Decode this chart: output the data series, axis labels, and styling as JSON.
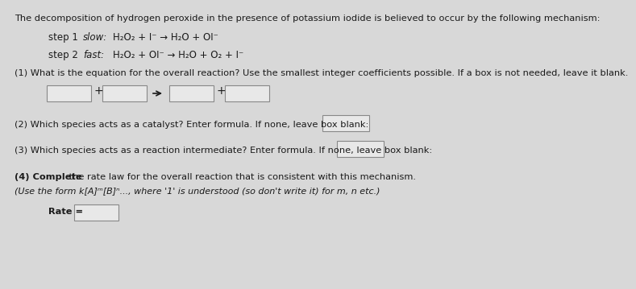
{
  "title_text": "The decomposition of hydrogen peroxide in the presence of potassium iodide is believed to occur by the following mechanism:",
  "step1_label": "step 1",
  "step1_speed": "slow:",
  "step1_eq": "H₂O₂ + I⁻ → H₂O + OI⁻",
  "step2_label": "step 2",
  "step2_speed": "fast:",
  "step2_eq": "H₂O₂ + OI⁻ → H₂O + O₂ + I⁻",
  "q1_text": "(1) What is the equation for the overall reaction? Use the smallest integer coefficients possible. If a box is not needed, leave it blank.",
  "q2_text": "(2) Which species acts as a catalyst? Enter formula. If none, leave box blank:",
  "q3_text": "(3) Which species acts as a reaction intermediate? Enter formula. If none, leave box blank:",
  "q4a_bold": "(4) Complete",
  "q4b_text": " the rate law for the overall reaction that is consistent with this mechanism.",
  "q4_hint": "(Use the form k[A]ᵐ[B]ⁿ..., where '1' is understood (so don't write it) for m, n etc.)",
  "rate_label": "Rate =",
  "bg_color": "#d8d8d8",
  "text_color": "#1a1a1a",
  "box_facecolor": "#e8e8e8",
  "box_edgecolor": "#888888"
}
